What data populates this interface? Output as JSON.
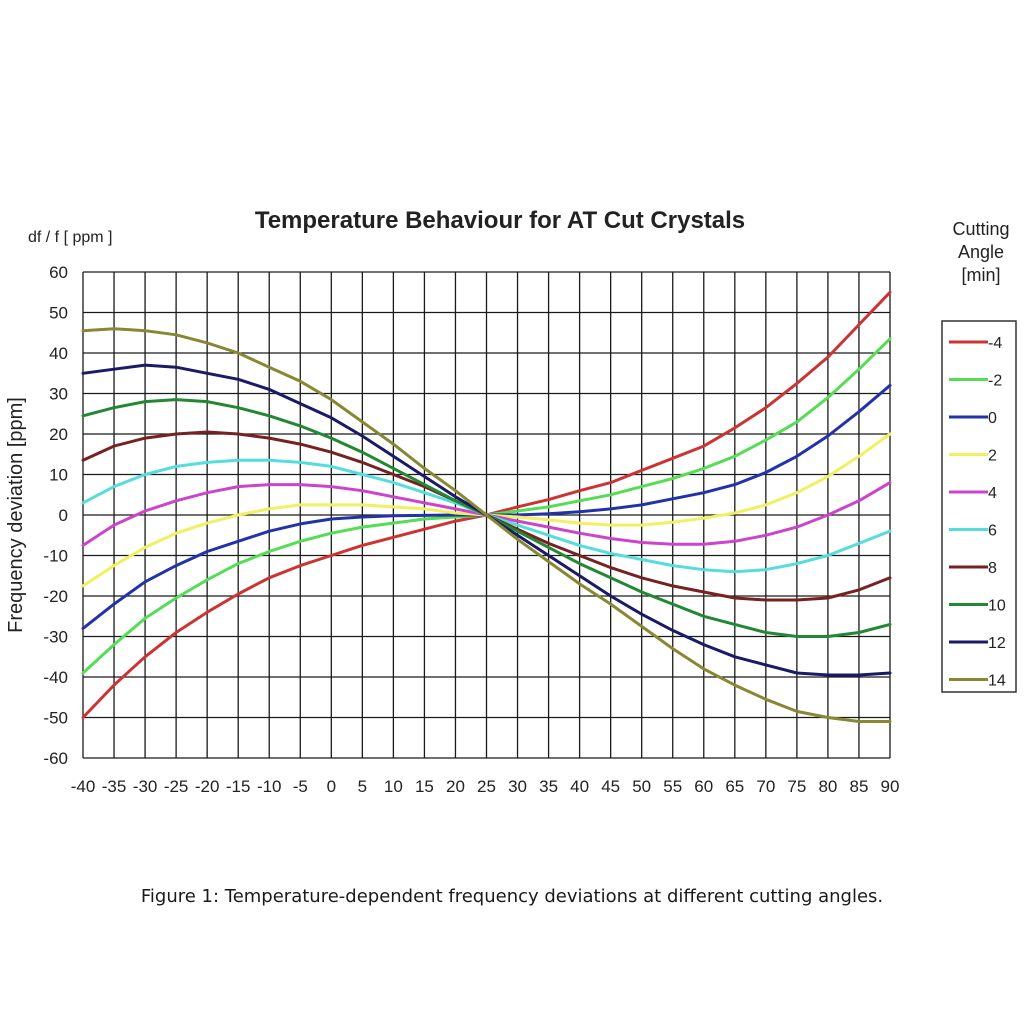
{
  "chart_data": {
    "type": "line",
    "title": "Temperature Behaviour for AT Cut Crystals",
    "unit_label": "df / f [ ppm ]",
    "ylabel": "Frequency deviation [ppm]",
    "xlabel": "",
    "xlim": [
      -40,
      90
    ],
    "ylim": [
      -60,
      60
    ],
    "grid": true,
    "legend_position": "right",
    "legend_title_lines": [
      "Cutting",
      "Angle",
      "[min]"
    ],
    "x": [
      -40,
      -35,
      -30,
      -25,
      -20,
      -15,
      -10,
      -5,
      0,
      5,
      10,
      15,
      20,
      25,
      30,
      35,
      40,
      45,
      50,
      55,
      60,
      65,
      70,
      75,
      80,
      85,
      90
    ],
    "x_tick_labels": [
      "-40",
      "-35",
      "-30",
      "-25",
      "-20",
      "-15",
      "-10",
      "-5",
      "0",
      "5",
      "10",
      "15",
      "20",
      "25",
      "30",
      "35",
      "40",
      "45",
      "50",
      "55",
      "60",
      "65",
      "70",
      "75",
      "80",
      "85",
      "90"
    ],
    "y_tick_labels": [
      "60",
      "50",
      "40",
      "30",
      "20",
      "10",
      "0",
      "-10",
      "-20",
      "-30",
      "-40",
      "-50",
      "-60"
    ],
    "series": [
      {
        "name": "-4",
        "color": "#cc3333",
        "values": [
          -50,
          -42,
          -35,
          -29,
          -24,
          -19.5,
          -15.5,
          -12.5,
          -10,
          -7.5,
          -5.5,
          -3.5,
          -1.5,
          0,
          2,
          3.8,
          6,
          8,
          11,
          14,
          17,
          21.5,
          26.5,
          32.5,
          39,
          47,
          55
        ]
      },
      {
        "name": "-2",
        "color": "#55dd55",
        "values": [
          -39,
          -32,
          -25.5,
          -20.5,
          -16,
          -12,
          -9,
          -6.5,
          -4.5,
          -3,
          -2,
          -1,
          -0.5,
          0,
          1,
          2,
          3.5,
          5,
          7,
          9,
          11.5,
          14.5,
          18.5,
          23,
          29,
          36,
          43.5
        ]
      },
      {
        "name": "0",
        "color": "#2233aa",
        "values": [
          -28,
          -22,
          -16.5,
          -12.5,
          -9,
          -6.5,
          -4,
          -2.2,
          -1,
          -0.5,
          -0.2,
          -0.1,
          0,
          0,
          0,
          0.3,
          0.8,
          1.5,
          2.5,
          4,
          5.5,
          7.5,
          10.5,
          14.5,
          19.5,
          25.5,
          32
        ]
      },
      {
        "name": "2",
        "color": "#f0f060",
        "values": [
          -17.5,
          -12.5,
          -8,
          -4.5,
          -2,
          0,
          1.5,
          2.5,
          2.5,
          2.5,
          2,
          1.5,
          0.5,
          0,
          -0.5,
          -1.2,
          -2,
          -2.5,
          -2.5,
          -1.8,
          -0.8,
          0.5,
          2.5,
          5.5,
          9.5,
          14.5,
          20
        ]
      },
      {
        "name": "4",
        "color": "#cc44cc",
        "values": [
          -7.5,
          -2.5,
          1,
          3.5,
          5.5,
          7,
          7.5,
          7.5,
          7,
          6,
          4.5,
          3,
          1.5,
          0,
          -1.5,
          -3,
          -4.5,
          -5.8,
          -6.8,
          -7.2,
          -7.2,
          -6.5,
          -5,
          -3,
          0,
          3.5,
          8
        ]
      },
      {
        "name": "6",
        "color": "#55dddd",
        "values": [
          3,
          7,
          10,
          12,
          13,
          13.5,
          13.5,
          13,
          12,
          10,
          8,
          5.5,
          3,
          0,
          -2.5,
          -5,
          -7.5,
          -9.5,
          -11,
          -12.5,
          -13.5,
          -14,
          -13.5,
          -12,
          -10,
          -7,
          -4
        ]
      },
      {
        "name": "8",
        "color": "#772222",
        "values": [
          13.5,
          17,
          19,
          20,
          20.5,
          20,
          19,
          17.5,
          15.5,
          13,
          10,
          7,
          3.5,
          0,
          -3.5,
          -7,
          -10,
          -13,
          -15.5,
          -17.5,
          -19,
          -20.5,
          -21,
          -21,
          -20.5,
          -18.5,
          -15.5
        ]
      },
      {
        "name": "10",
        "color": "#228833",
        "values": [
          24.5,
          26.5,
          28,
          28.5,
          28,
          26.5,
          24.5,
          22,
          19,
          15.5,
          11.5,
          7.5,
          3.5,
          0,
          -4,
          -8,
          -12,
          -15.5,
          -19,
          -22,
          -25,
          -27,
          -29,
          -30,
          -30,
          -29,
          -27
        ]
      },
      {
        "name": "12",
        "color": "#1a1a66",
        "values": [
          35,
          36,
          37,
          36.5,
          35,
          33.5,
          31,
          27.5,
          24,
          19.5,
          14.5,
          9.5,
          4.5,
          0,
          -5,
          -10,
          -15,
          -20,
          -24.5,
          -28.5,
          -32,
          -35,
          -37,
          -39,
          -39.5,
          -39.5,
          -39
        ]
      },
      {
        "name": "14",
        "color": "#888833",
        "values": [
          45.5,
          46,
          45.5,
          44.5,
          42.5,
          40,
          36.5,
          33,
          28.5,
          23,
          17.5,
          11.5,
          6,
          0,
          -6,
          -11.5,
          -17,
          -22,
          -27.5,
          -33,
          -38,
          -42,
          -45.5,
          -48.5,
          -50,
          -51,
          -51
        ]
      }
    ]
  },
  "caption": "Figure 1: Temperature-dependent frequency deviations at different cutting angles."
}
